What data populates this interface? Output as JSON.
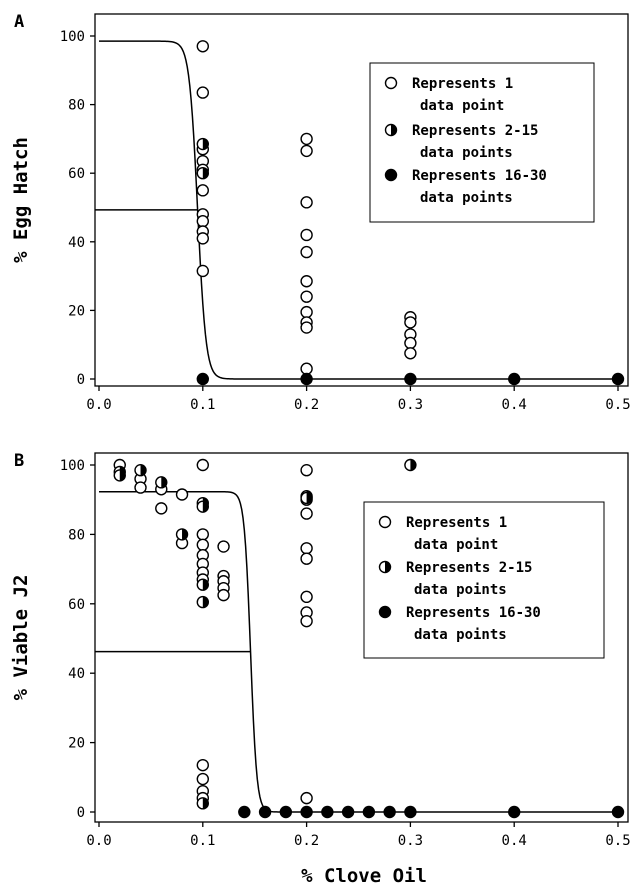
{
  "figure": {
    "xlabel": "% Clove Oil"
  },
  "chart_data": [
    {
      "type": "scatter",
      "panel_label": "A",
      "xlabel": "",
      "ylabel": "% Egg Hatch",
      "xlim": [
        0.0,
        0.5
      ],
      "ylim": [
        0,
        100
      ],
      "x_ticks": [
        "0.0",
        "0.1",
        "0.2",
        "0.3",
        "0.4",
        "0.5"
      ],
      "y_ticks": [
        "0",
        "20",
        "40",
        "60",
        "80",
        "100"
      ],
      "legend": {
        "position": "top-right",
        "entries": [
          {
            "marker": "open",
            "lines": [
              "Represents 1",
              "data point"
            ]
          },
          {
            "marker": "half",
            "lines": [
              "Represents 2-15",
              "data points"
            ]
          },
          {
            "marker": "filled",
            "lines": [
              "Represents 16-30",
              "data points"
            ]
          }
        ]
      },
      "curve": {
        "type": "sigmoid",
        "top": 98.5,
        "bottom": 0,
        "ec50": 0.095,
        "slope_width": 0.004,
        "ec50_reference_line": {
          "y": 49.3,
          "x_end": 0.095
        }
      },
      "series": [
        {
          "marker": "open",
          "points": [
            [
              0.1,
              97
            ],
            [
              0.1,
              83.5
            ],
            [
              0.1,
              67
            ],
            [
              0.1,
              63.5
            ],
            [
              0.1,
              61
            ],
            [
              0.1,
              55
            ],
            [
              0.1,
              48
            ],
            [
              0.1,
              46
            ],
            [
              0.1,
              43
            ],
            [
              0.1,
              41
            ],
            [
              0.1,
              31.5
            ],
            [
              0.2,
              70
            ],
            [
              0.2,
              66.5
            ],
            [
              0.2,
              51.5
            ],
            [
              0.2,
              42
            ],
            [
              0.2,
              37
            ],
            [
              0.2,
              28.5
            ],
            [
              0.2,
              24
            ],
            [
              0.2,
              19.5
            ],
            [
              0.2,
              16.5
            ],
            [
              0.2,
              15
            ],
            [
              0.2,
              3
            ],
            [
              0.3,
              18
            ],
            [
              0.3,
              16.5
            ],
            [
              0.3,
              13
            ],
            [
              0.3,
              10.5
            ],
            [
              0.3,
              7.5
            ]
          ]
        },
        {
          "marker": "half",
          "points": [
            [
              0.1,
              68.5
            ],
            [
              0.1,
              60
            ]
          ]
        },
        {
          "marker": "filled",
          "points": [
            [
              0.1,
              0
            ],
            [
              0.2,
              0
            ],
            [
              0.3,
              0
            ],
            [
              0.4,
              0
            ],
            [
              0.5,
              0
            ]
          ]
        }
      ]
    },
    {
      "type": "scatter",
      "panel_label": "B",
      "xlabel": "% Clove Oil",
      "ylabel": "% Viable J2",
      "xlim": [
        0.0,
        0.5
      ],
      "ylim": [
        0,
        100
      ],
      "x_ticks": [
        "0.0",
        "0.1",
        "0.2",
        "0.3",
        "0.4",
        "0.5"
      ],
      "y_ticks": [
        "0",
        "20",
        "40",
        "60",
        "80",
        "100"
      ],
      "legend": {
        "position": "right",
        "entries": [
          {
            "marker": "open",
            "lines": [
              "Represents 1",
              "data point"
            ]
          },
          {
            "marker": "half",
            "lines": [
              "Represents 2-15",
              "data points"
            ]
          },
          {
            "marker": "filled",
            "lines": [
              "Represents 16-30",
              "data points"
            ]
          }
        ]
      },
      "curve": {
        "type": "sigmoid",
        "top": 92.3,
        "bottom": 0,
        "ec50": 0.146,
        "slope_width": 0.003,
        "ec50_reference_line": {
          "y": 46.2,
          "x_end": 0.146
        }
      },
      "series": [
        {
          "marker": "open",
          "points": [
            [
              0.02,
              100
            ],
            [
              0.04,
              96
            ],
            [
              0.04,
              93.5
            ],
            [
              0.06,
              93
            ],
            [
              0.06,
              87.5
            ],
            [
              0.08,
              91.5
            ],
            [
              0.08,
              77.5
            ],
            [
              0.1,
              100
            ],
            [
              0.1,
              80
            ],
            [
              0.1,
              77
            ],
            [
              0.1,
              74
            ],
            [
              0.1,
              71.5
            ],
            [
              0.1,
              69
            ],
            [
              0.1,
              67
            ],
            [
              0.1,
              13.5
            ],
            [
              0.1,
              9.5
            ],
            [
              0.1,
              6
            ],
            [
              0.1,
              4
            ],
            [
              0.12,
              76.5
            ],
            [
              0.12,
              68
            ],
            [
              0.12,
              66.5
            ],
            [
              0.12,
              64.5
            ],
            [
              0.12,
              62.5
            ],
            [
              0.2,
              98.5
            ],
            [
              0.2,
              90
            ],
            [
              0.2,
              86
            ],
            [
              0.2,
              76
            ],
            [
              0.2,
              73
            ],
            [
              0.2,
              62
            ],
            [
              0.2,
              57.5
            ],
            [
              0.2,
              55
            ],
            [
              0.2,
              4
            ]
          ]
        },
        {
          "marker": "half",
          "points": [
            [
              0.02,
              98
            ],
            [
              0.02,
              97
            ],
            [
              0.04,
              98.5
            ],
            [
              0.06,
              95
            ],
            [
              0.08,
              80
            ],
            [
              0.1,
              89
            ],
            [
              0.1,
              88
            ],
            [
              0.1,
              65.5
            ],
            [
              0.1,
              60.5
            ],
            [
              0.1,
              2.5
            ],
            [
              0.2,
              91
            ],
            [
              0.2,
              90.5
            ],
            [
              0.3,
              100
            ]
          ]
        },
        {
          "marker": "filled",
          "points": [
            [
              0.14,
              0
            ],
            [
              0.16,
              0
            ],
            [
              0.18,
              0
            ],
            [
              0.2,
              0
            ],
            [
              0.22,
              0
            ],
            [
              0.24,
              0
            ],
            [
              0.26,
              0
            ],
            [
              0.28,
              0
            ],
            [
              0.3,
              0
            ],
            [
              0.4,
              0
            ],
            [
              0.5,
              0
            ]
          ]
        }
      ]
    }
  ]
}
